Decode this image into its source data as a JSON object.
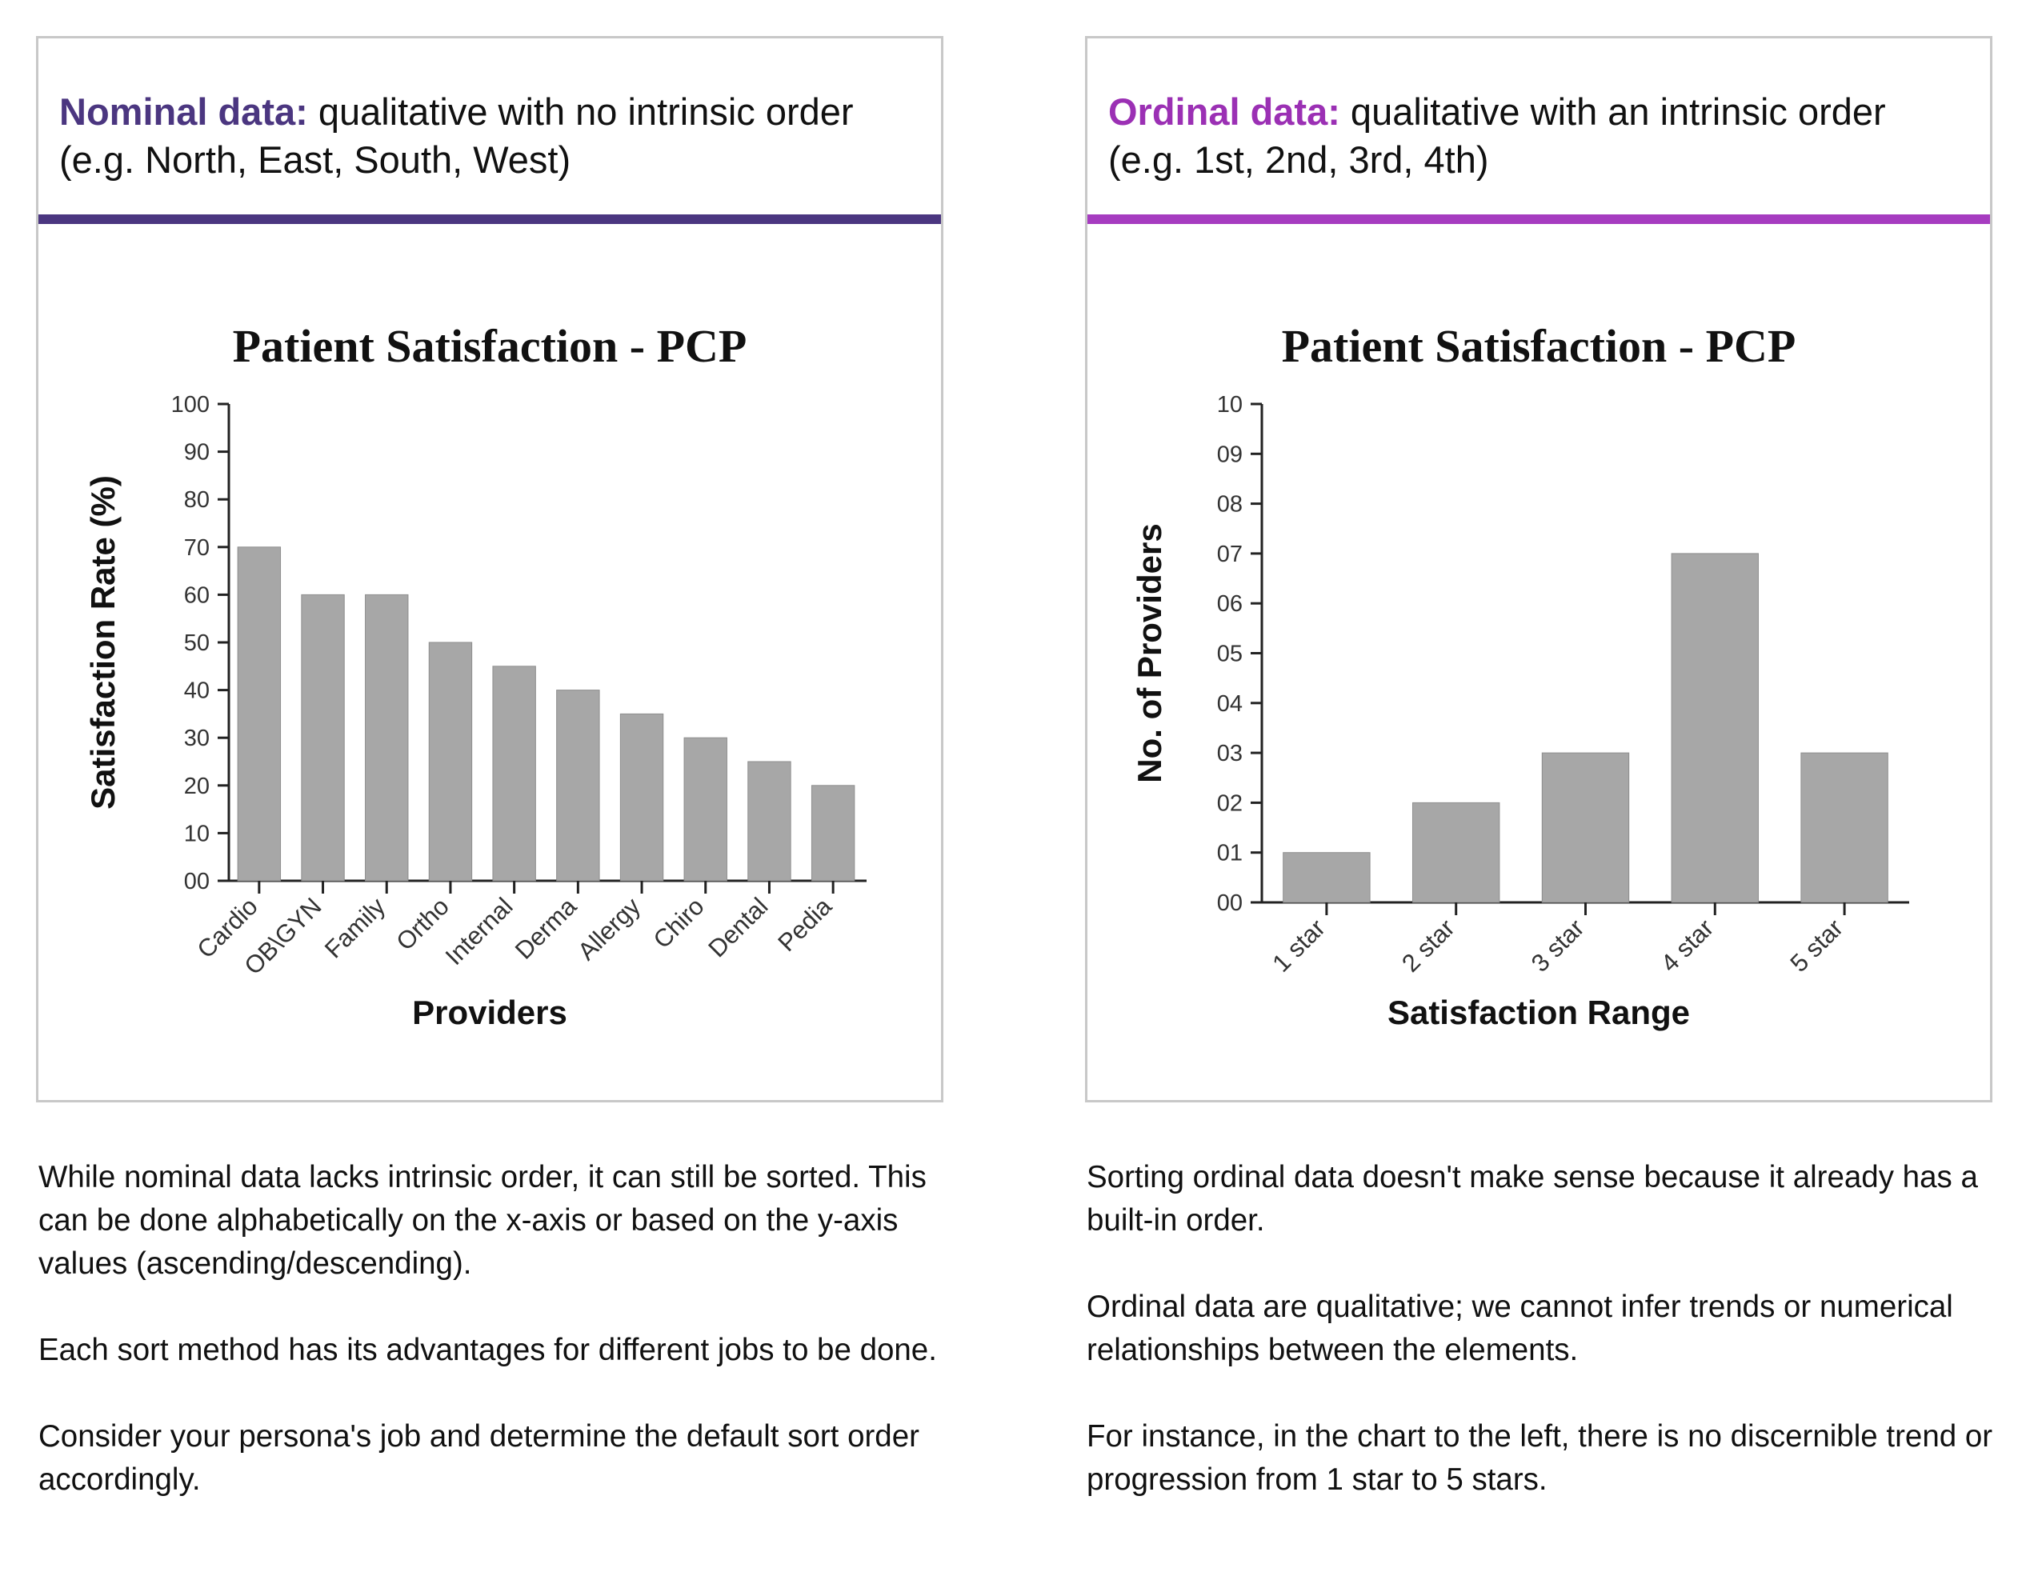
{
  "left": {
    "heading_term": "Nominal data:",
    "heading_text": "  qualitative with no intrinsic order (e.g. North, East, South, West)",
    "accent": "#4b3680",
    "notes": [
      "While nominal data lacks intrinsic order, it can still be sorted. This can be done alphabetically on the x-axis or based on the y-axis values (ascending/descending).",
      "Each sort method has its advantages for different  jobs to be done.",
      "Consider your persona's job and determine the default sort order accordingly."
    ]
  },
  "right": {
    "heading_term": "Ordinal data:",
    "heading_text": " qualitative with an intrinsic order (e.g. 1st, 2nd, 3rd, 4th)",
    "accent": "#a63cc0",
    "notes": [
      "Sorting ordinal data doesn't make sense because it already has a built-in order.",
      "Ordinal data are qualitative; we cannot infer trends or numerical relationships between the elements.",
      "For instance, in the chart to the left, there is no discernible trend or progression from 1 star to 5 stars."
    ]
  },
  "chart_data": [
    {
      "type": "bar",
      "title": "Patient Satisfaction - PCP",
      "xlabel": "Providers",
      "ylabel": "Satisfaction Rate (%)",
      "categories": [
        "Cardio",
        "OB\\GYN",
        "Family",
        "Ortho",
        "Internal",
        "Derma",
        "Allergy",
        "Chiro",
        "Dental",
        "Pedia"
      ],
      "values": [
        70,
        60,
        60,
        50,
        45,
        40,
        35,
        30,
        25,
        20
      ],
      "ylim": [
        0,
        100
      ],
      "yticks": [
        "00",
        "10",
        "20",
        "30",
        "40",
        "50",
        "60",
        "70",
        "80",
        "90",
        "100"
      ],
      "bar_color": "#a7a7a7",
      "grid": false
    },
    {
      "type": "bar",
      "title": "Patient Satisfaction - PCP",
      "xlabel": "Satisfaction Range",
      "ylabel": "No. of Providers",
      "categories": [
        "1 star",
        "2 star",
        "3 star",
        "4 star",
        "5 star"
      ],
      "values": [
        1,
        2,
        3,
        7,
        3
      ],
      "ylim": [
        0,
        10
      ],
      "yticks": [
        "00",
        "01",
        "02",
        "03",
        "04",
        "05",
        "06",
        "07",
        "08",
        "09",
        "10"
      ],
      "bar_color": "#a7a7a7",
      "grid": false
    }
  ]
}
